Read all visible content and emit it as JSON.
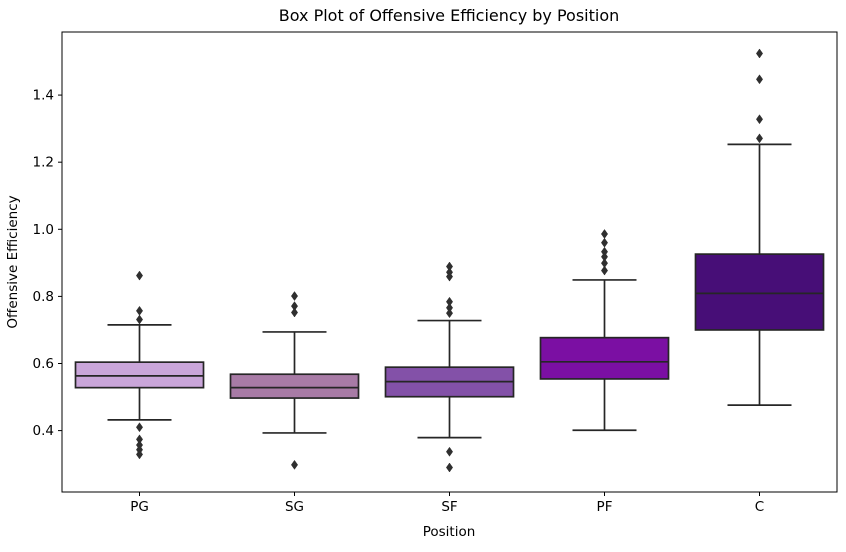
{
  "chart_data": {
    "type": "box",
    "title": "Box Plot of Offensive Efficiency by Position",
    "xlabel": "Position",
    "ylabel": "Offensive Efficiency",
    "categories": [
      "PG",
      "SG",
      "SF",
      "PF",
      "C"
    ],
    "ylim": [
      0.217,
      1.588
    ],
    "yticks": [
      0.4,
      0.6,
      0.8,
      1.0,
      1.2,
      1.4
    ],
    "legend": "none",
    "grid": false,
    "edge_color": "#262626",
    "flier_color": "#2f2f2f",
    "axis_color": "#000000",
    "background_color": "#ffffff",
    "series": [
      {
        "name": "PG",
        "fill": "#caa6da",
        "whisker_low": 0.432,
        "q1": 0.528,
        "median": 0.563,
        "q3": 0.604,
        "whisker_high": 0.715,
        "outliers": [
          0.862,
          0.757,
          0.731,
          0.41,
          0.374,
          0.357,
          0.343,
          0.329
        ]
      },
      {
        "name": "SG",
        "fill": "#a87ba6",
        "whisker_low": 0.393,
        "q1": 0.497,
        "median": 0.528,
        "q3": 0.568,
        "whisker_high": 0.694,
        "outliers": [
          0.801,
          0.771,
          0.752,
          0.298
        ]
      },
      {
        "name": "SF",
        "fill": "#8351a8",
        "whisker_low": 0.379,
        "q1": 0.501,
        "median": 0.546,
        "q3": 0.589,
        "whisker_high": 0.728,
        "outliers": [
          0.889,
          0.872,
          0.859,
          0.784,
          0.766,
          0.75,
          0.337,
          0.29
        ]
      },
      {
        "name": "PF",
        "fill": "#7b0fa3",
        "whisker_low": 0.401,
        "q1": 0.554,
        "median": 0.605,
        "q3": 0.677,
        "whisker_high": 0.849,
        "outliers": [
          0.986,
          0.96,
          0.933,
          0.918,
          0.899,
          0.877
        ]
      },
      {
        "name": "C",
        "fill": "#470e77",
        "whisker_low": 0.476,
        "q1": 0.7,
        "median": 0.809,
        "q3": 0.926,
        "whisker_high": 1.253,
        "outliers": [
          1.524,
          1.447,
          1.328,
          1.271
        ]
      }
    ]
  }
}
